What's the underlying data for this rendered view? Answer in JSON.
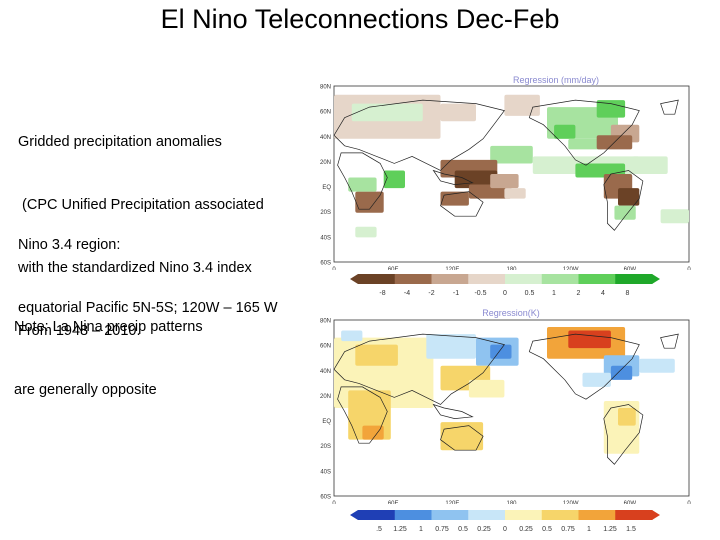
{
  "slide": {
    "title": "El Nino Teleconnections Dec-Feb",
    "description_lines": [
      "Gridded precipitation anomalies",
      " (CPC Unified Precipitation associated",
      "with the standardized Nino 3.4 index",
      "From 1948 – 2010."
    ],
    "region_lines": [
      "Nino 3.4 region:",
      "equatorial Pacific 5N-5S; 120W – 165 W"
    ],
    "note_lines": [
      "Note: La Nina precip patterns",
      "are generally opposite"
    ]
  },
  "maps": [
    {
      "id": "precip",
      "title": "Regression (mm/day)",
      "lat_labels": [
        "80N",
        "60N",
        "40N",
        "20N",
        "EQ",
        "20S",
        "40S",
        "60S"
      ],
      "lon_labels": [
        "0",
        "60E",
        "120E",
        "180",
        "120W",
        "60W",
        "0"
      ],
      "colorbar_labels": [
        "-8",
        "-4",
        "-2",
        "-1",
        "-0.5",
        "0",
        "0.5",
        "1",
        "2",
        "4",
        "8"
      ],
      "colors": {
        "neg_strong": "#6b4226",
        "neg_mid": "#9a6a4c",
        "neg_weak": "#c8a791",
        "neg_faint": "#e6d6c9",
        "pos_faint": "#d6f0d0",
        "pos_weak": "#a7e3a0",
        "pos_mid": "#5fcf5a",
        "pos_strong": "#1fa82a"
      }
    },
    {
      "id": "temp",
      "title": "Regression(K)",
      "lat_labels": [
        "80N",
        "60N",
        "40N",
        "20N",
        "EQ",
        "20S",
        "40S",
        "60S"
      ],
      "lon_labels": [
        "0",
        "60E",
        "120E",
        "180",
        "120W",
        "60W",
        "0"
      ],
      "colorbar_labels": [
        ".5",
        "1.25",
        "1",
        "0.75",
        "0.5",
        "0.25",
        "0",
        "0.25",
        "0.5",
        "0.75",
        "1",
        "1.25",
        "1.5"
      ],
      "colors": {
        "neg_strong": "#1f3fb5",
        "neg_mid": "#4d8fe0",
        "neg_weak": "#8fc3f0",
        "neg_faint": "#c8e6f8",
        "pos_faint": "#fbf3b8",
        "pos_weak": "#f6d56a",
        "pos_mid": "#f2a43a",
        "pos_strong": "#d8401e"
      }
    }
  ]
}
